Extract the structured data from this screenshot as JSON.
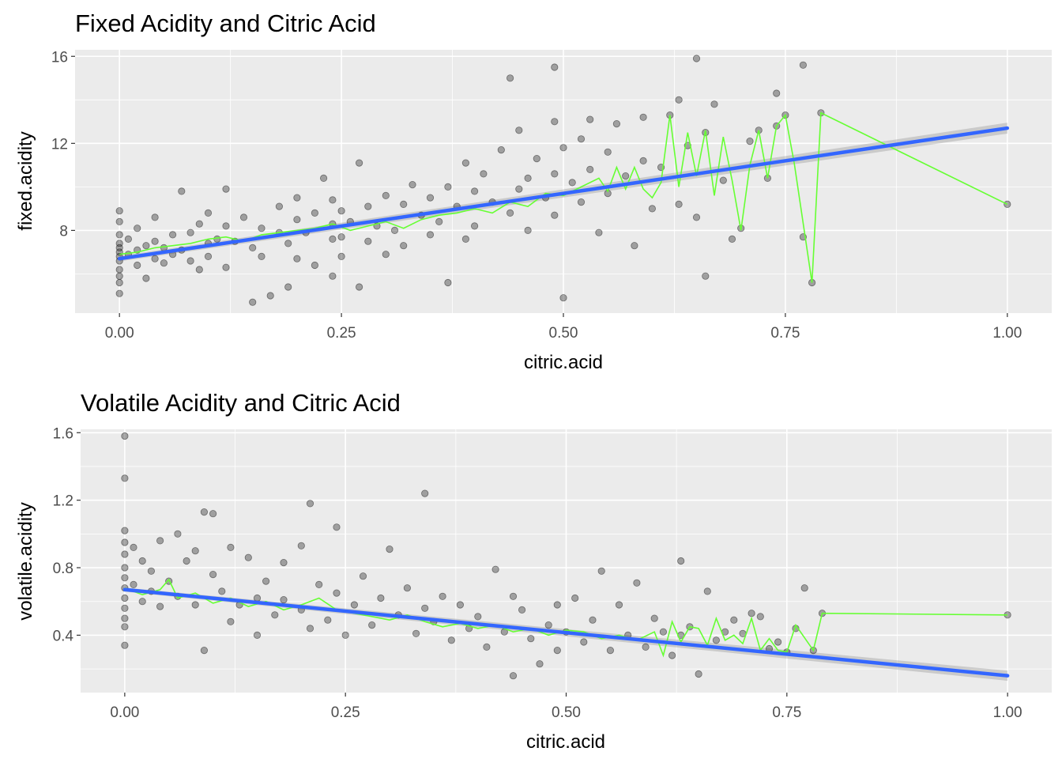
{
  "chart_data": [
    {
      "type": "scatter",
      "title": "Fixed Acidity and Citric Acid",
      "xlabel": "citric.acid",
      "ylabel": "fixed.acidity",
      "xlim": [
        -0.05,
        1.05
      ],
      "ylim": [
        4.2,
        16.3
      ],
      "xticks": [
        0.0,
        0.25,
        0.5,
        0.75,
        1.0
      ],
      "xtick_labels": [
        "0.00",
        "0.25",
        "0.50",
        "0.75",
        "1.00"
      ],
      "yticks": [
        8,
        12,
        16
      ],
      "ytick_labels": [
        "8",
        "12",
        "16"
      ],
      "grid": true,
      "scatter_color": "#000000",
      "mean_color": "#66ff33",
      "fit_color": "#3366ff",
      "fit": {
        "x": [
          0.0,
          1.0
        ],
        "y": [
          6.7,
          12.7
        ],
        "se_band": [
          [
            0.0,
            0.12
          ],
          [
            1.0,
            0.25
          ]
        ]
      },
      "mean_line": {
        "x": [
          0.0,
          0.02,
          0.04,
          0.06,
          0.08,
          0.1,
          0.12,
          0.14,
          0.16,
          0.18,
          0.2,
          0.22,
          0.24,
          0.26,
          0.28,
          0.3,
          0.32,
          0.34,
          0.36,
          0.38,
          0.4,
          0.42,
          0.44,
          0.46,
          0.48,
          0.5,
          0.52,
          0.54,
          0.55,
          0.56,
          0.57,
          0.58,
          0.59,
          0.6,
          0.61,
          0.62,
          0.63,
          0.64,
          0.65,
          0.66,
          0.67,
          0.68,
          0.69,
          0.7,
          0.71,
          0.72,
          0.73,
          0.74,
          0.75,
          0.76,
          0.78,
          0.79,
          1.0
        ],
        "y": [
          6.9,
          7.0,
          7.2,
          7.3,
          7.4,
          7.6,
          7.7,
          7.5,
          7.8,
          7.9,
          8.0,
          8.1,
          8.3,
          8.0,
          8.2,
          8.4,
          8.1,
          8.5,
          8.7,
          8.8,
          9.0,
          8.8,
          9.3,
          9.1,
          9.7,
          9.6,
          10.0,
          10.4,
          9.8,
          10.9,
          9.9,
          10.9,
          9.9,
          9.5,
          10.2,
          13.3,
          10.0,
          12.5,
          10.5,
          12.6,
          9.6,
          12.3,
          10.3,
          8.0,
          11.0,
          12.6,
          10.4,
          12.8,
          13.3,
          11.1,
          5.6,
          13.4,
          9.2
        ]
      },
      "points": [
        [
          0.0,
          7.0
        ],
        [
          0.0,
          7.4
        ],
        [
          0.0,
          6.6
        ],
        [
          0.0,
          8.9
        ],
        [
          0.0,
          5.1
        ],
        [
          0.0,
          6.2
        ],
        [
          0.0,
          7.8
        ],
        [
          0.0,
          8.4
        ],
        [
          0.0,
          5.6
        ],
        [
          0.0,
          6.8
        ],
        [
          0.0,
          7.2
        ],
        [
          0.0,
          5.9
        ],
        [
          0.01,
          6.9
        ],
        [
          0.01,
          7.6
        ],
        [
          0.02,
          7.1
        ],
        [
          0.02,
          6.4
        ],
        [
          0.02,
          8.1
        ],
        [
          0.03,
          7.3
        ],
        [
          0.03,
          5.8
        ],
        [
          0.04,
          6.7
        ],
        [
          0.04,
          7.5
        ],
        [
          0.04,
          8.6
        ],
        [
          0.05,
          6.5
        ],
        [
          0.05,
          7.2
        ],
        [
          0.06,
          7.8
        ],
        [
          0.06,
          6.9
        ],
        [
          0.07,
          9.8
        ],
        [
          0.07,
          7.1
        ],
        [
          0.08,
          6.6
        ],
        [
          0.08,
          7.9
        ],
        [
          0.09,
          8.3
        ],
        [
          0.09,
          6.2
        ],
        [
          0.1,
          7.4
        ],
        [
          0.1,
          8.8
        ],
        [
          0.1,
          6.8
        ],
        [
          0.11,
          7.6
        ],
        [
          0.12,
          9.9
        ],
        [
          0.12,
          8.2
        ],
        [
          0.12,
          6.3
        ],
        [
          0.13,
          7.5
        ],
        [
          0.14,
          8.6
        ],
        [
          0.15,
          4.7
        ],
        [
          0.15,
          7.2
        ],
        [
          0.16,
          8.1
        ],
        [
          0.16,
          6.8
        ],
        [
          0.17,
          5.0
        ],
        [
          0.18,
          7.9
        ],
        [
          0.18,
          9.1
        ],
        [
          0.19,
          5.4
        ],
        [
          0.19,
          7.4
        ],
        [
          0.2,
          8.5
        ],
        [
          0.2,
          6.7
        ],
        [
          0.2,
          9.5
        ],
        [
          0.21,
          7.9
        ],
        [
          0.22,
          8.8
        ],
        [
          0.22,
          6.4
        ],
        [
          0.23,
          10.4
        ],
        [
          0.24,
          7.6
        ],
        [
          0.24,
          8.3
        ],
        [
          0.24,
          9.4
        ],
        [
          0.24,
          5.9
        ],
        [
          0.25,
          8.9
        ],
        [
          0.25,
          6.8
        ],
        [
          0.25,
          7.7
        ],
        [
          0.26,
          8.4
        ],
        [
          0.27,
          11.1
        ],
        [
          0.27,
          5.4
        ],
        [
          0.28,
          9.1
        ],
        [
          0.28,
          7.5
        ],
        [
          0.29,
          8.2
        ],
        [
          0.3,
          9.6
        ],
        [
          0.3,
          6.9
        ],
        [
          0.31,
          8.0
        ],
        [
          0.32,
          9.2
        ],
        [
          0.32,
          7.3
        ],
        [
          0.33,
          10.1
        ],
        [
          0.34,
          8.7
        ],
        [
          0.35,
          7.8
        ],
        [
          0.35,
          9.5
        ],
        [
          0.36,
          8.4
        ],
        [
          0.37,
          5.6
        ],
        [
          0.37,
          10.0
        ],
        [
          0.38,
          9.1
        ],
        [
          0.39,
          7.6
        ],
        [
          0.39,
          11.1
        ],
        [
          0.4,
          9.8
        ],
        [
          0.4,
          8.2
        ],
        [
          0.41,
          10.6
        ],
        [
          0.42,
          9.3
        ],
        [
          0.43,
          11.7
        ],
        [
          0.44,
          8.8
        ],
        [
          0.44,
          15.0
        ],
        [
          0.45,
          9.9
        ],
        [
          0.45,
          12.6
        ],
        [
          0.46,
          10.4
        ],
        [
          0.46,
          8.0
        ],
        [
          0.47,
          11.3
        ],
        [
          0.48,
          9.5
        ],
        [
          0.49,
          15.5
        ],
        [
          0.49,
          13.0
        ],
        [
          0.49,
          10.6
        ],
        [
          0.49,
          8.7
        ],
        [
          0.5,
          11.8
        ],
        [
          0.5,
          4.9
        ],
        [
          0.51,
          10.2
        ],
        [
          0.52,
          12.2
        ],
        [
          0.52,
          9.3
        ],
        [
          0.53,
          13.1
        ],
        [
          0.53,
          10.8
        ],
        [
          0.54,
          7.9
        ],
        [
          0.55,
          11.6
        ],
        [
          0.55,
          9.7
        ],
        [
          0.56,
          12.9
        ],
        [
          0.57,
          10.5
        ],
        [
          0.58,
          7.3
        ],
        [
          0.59,
          11.2
        ],
        [
          0.59,
          13.2
        ],
        [
          0.6,
          9.0
        ],
        [
          0.61,
          10.9
        ],
        [
          0.62,
          13.3
        ],
        [
          0.63,
          14.0
        ],
        [
          0.63,
          9.2
        ],
        [
          0.64,
          11.9
        ],
        [
          0.65,
          15.9
        ],
        [
          0.65,
          8.6
        ],
        [
          0.66,
          12.5
        ],
        [
          0.66,
          5.9
        ],
        [
          0.67,
          13.8
        ],
        [
          0.68,
          10.3
        ],
        [
          0.69,
          7.6
        ],
        [
          0.7,
          8.1
        ],
        [
          0.71,
          12.1
        ],
        [
          0.72,
          12.6
        ],
        [
          0.73,
          10.4
        ],
        [
          0.74,
          14.3
        ],
        [
          0.74,
          12.8
        ],
        [
          0.75,
          13.3
        ],
        [
          0.77,
          15.6
        ],
        [
          0.77,
          7.7
        ],
        [
          0.78,
          5.6
        ],
        [
          0.79,
          13.4
        ],
        [
          1.0,
          9.2
        ]
      ]
    },
    {
      "type": "scatter",
      "title": "Volatile Acidity and Citric Acid",
      "xlabel": "citric.acid",
      "ylabel": "volatile.acidity",
      "xlim": [
        -0.05,
        1.05
      ],
      "ylim": [
        0.06,
        1.62
      ],
      "xticks": [
        0.0,
        0.25,
        0.5,
        0.75,
        1.0
      ],
      "xtick_labels": [
        "0.00",
        "0.25",
        "0.50",
        "0.75",
        "1.00"
      ],
      "yticks": [
        0.4,
        0.8,
        1.2,
        1.6
      ],
      "ytick_labels": [
        "0.4",
        "0.8",
        "1.2",
        "1.6"
      ],
      "grid": true,
      "scatter_color": "#000000",
      "mean_color": "#66ff33",
      "fit_color": "#3366ff",
      "fit": {
        "x": [
          0.0,
          1.0
        ],
        "y": [
          0.67,
          0.16
        ],
        "se_band": [
          [
            0.0,
            0.012
          ],
          [
            1.0,
            0.03
          ]
        ]
      },
      "mean_line": {
        "x": [
          0.0,
          0.02,
          0.04,
          0.05,
          0.06,
          0.08,
          0.1,
          0.12,
          0.14,
          0.16,
          0.18,
          0.2,
          0.22,
          0.24,
          0.26,
          0.28,
          0.3,
          0.32,
          0.34,
          0.36,
          0.38,
          0.4,
          0.42,
          0.44,
          0.46,
          0.48,
          0.5,
          0.52,
          0.54,
          0.56,
          0.58,
          0.6,
          0.61,
          0.62,
          0.63,
          0.64,
          0.65,
          0.66,
          0.67,
          0.68,
          0.69,
          0.7,
          0.71,
          0.72,
          0.73,
          0.74,
          0.75,
          0.76,
          0.78,
          0.79,
          1.0
        ],
        "y": [
          0.68,
          0.64,
          0.67,
          0.73,
          0.62,
          0.65,
          0.59,
          0.62,
          0.57,
          0.6,
          0.55,
          0.58,
          0.62,
          0.55,
          0.53,
          0.51,
          0.49,
          0.52,
          0.48,
          0.45,
          0.47,
          0.44,
          0.46,
          0.42,
          0.44,
          0.4,
          0.43,
          0.42,
          0.38,
          0.4,
          0.37,
          0.42,
          0.28,
          0.48,
          0.36,
          0.45,
          0.44,
          0.34,
          0.5,
          0.37,
          0.4,
          0.35,
          0.5,
          0.31,
          0.38,
          0.31,
          0.3,
          0.46,
          0.31,
          0.53,
          0.52
        ]
      },
      "points": [
        [
          0.0,
          1.58
        ],
        [
          0.0,
          1.33
        ],
        [
          0.0,
          1.02
        ],
        [
          0.0,
          0.95
        ],
        [
          0.0,
          0.88
        ],
        [
          0.0,
          0.8
        ],
        [
          0.0,
          0.74
        ],
        [
          0.0,
          0.68
        ],
        [
          0.0,
          0.62
        ],
        [
          0.0,
          0.56
        ],
        [
          0.0,
          0.5
        ],
        [
          0.0,
          0.45
        ],
        [
          0.0,
          0.34
        ],
        [
          0.01,
          0.92
        ],
        [
          0.01,
          0.7
        ],
        [
          0.02,
          0.84
        ],
        [
          0.02,
          0.6
        ],
        [
          0.03,
          0.78
        ],
        [
          0.03,
          0.66
        ],
        [
          0.04,
          0.96
        ],
        [
          0.04,
          0.57
        ],
        [
          0.05,
          0.72
        ],
        [
          0.06,
          1.0
        ],
        [
          0.06,
          0.63
        ],
        [
          0.07,
          0.84
        ],
        [
          0.08,
          0.9
        ],
        [
          0.08,
          0.58
        ],
        [
          0.09,
          1.13
        ],
        [
          0.09,
          0.31
        ],
        [
          0.1,
          0.76
        ],
        [
          0.1,
          1.12
        ],
        [
          0.11,
          0.66
        ],
        [
          0.12,
          0.92
        ],
        [
          0.12,
          0.48
        ],
        [
          0.13,
          0.58
        ],
        [
          0.14,
          0.86
        ],
        [
          0.15,
          0.62
        ],
        [
          0.15,
          0.4
        ],
        [
          0.16,
          0.72
        ],
        [
          0.17,
          0.52
        ],
        [
          0.18,
          0.83
        ],
        [
          0.18,
          0.61
        ],
        [
          0.2,
          0.55
        ],
        [
          0.2,
          0.93
        ],
        [
          0.21,
          1.18
        ],
        [
          0.21,
          0.44
        ],
        [
          0.22,
          0.7
        ],
        [
          0.23,
          0.49
        ],
        [
          0.24,
          0.65
        ],
        [
          0.24,
          1.04
        ],
        [
          0.25,
          0.4
        ],
        [
          0.26,
          0.58
        ],
        [
          0.27,
          0.75
        ],
        [
          0.28,
          0.46
        ],
        [
          0.29,
          0.62
        ],
        [
          0.3,
          0.91
        ],
        [
          0.31,
          0.52
        ],
        [
          0.32,
          0.68
        ],
        [
          0.33,
          0.41
        ],
        [
          0.34,
          1.24
        ],
        [
          0.34,
          0.56
        ],
        [
          0.35,
          0.48
        ],
        [
          0.36,
          0.63
        ],
        [
          0.37,
          0.37
        ],
        [
          0.38,
          0.58
        ],
        [
          0.39,
          0.44
        ],
        [
          0.4,
          0.51
        ],
        [
          0.41,
          0.33
        ],
        [
          0.42,
          0.79
        ],
        [
          0.43,
          0.42
        ],
        [
          0.44,
          0.63
        ],
        [
          0.44,
          0.16
        ],
        [
          0.45,
          0.55
        ],
        [
          0.46,
          0.38
        ],
        [
          0.47,
          0.23
        ],
        [
          0.48,
          0.46
        ],
        [
          0.49,
          0.58
        ],
        [
          0.49,
          0.31
        ],
        [
          0.5,
          0.42
        ],
        [
          0.51,
          0.62
        ],
        [
          0.52,
          0.36
        ],
        [
          0.53,
          0.49
        ],
        [
          0.54,
          0.78
        ],
        [
          0.55,
          0.31
        ],
        [
          0.56,
          0.58
        ],
        [
          0.57,
          0.4
        ],
        [
          0.58,
          0.71
        ],
        [
          0.59,
          0.33
        ],
        [
          0.6,
          0.5
        ],
        [
          0.61,
          0.42
        ],
        [
          0.62,
          0.28
        ],
        [
          0.63,
          0.84
        ],
        [
          0.63,
          0.4
        ],
        [
          0.64,
          0.45
        ],
        [
          0.65,
          0.17
        ],
        [
          0.66,
          0.66
        ],
        [
          0.67,
          0.37
        ],
        [
          0.68,
          0.42
        ],
        [
          0.69,
          0.49
        ],
        [
          0.7,
          0.41
        ],
        [
          0.71,
          0.53
        ],
        [
          0.72,
          0.51
        ],
        [
          0.73,
          0.32
        ],
        [
          0.74,
          0.36
        ],
        [
          0.75,
          0.3
        ],
        [
          0.76,
          0.44
        ],
        [
          0.77,
          0.68
        ],
        [
          0.78,
          0.31
        ],
        [
          0.79,
          0.53
        ],
        [
          1.0,
          0.52
        ]
      ]
    }
  ]
}
